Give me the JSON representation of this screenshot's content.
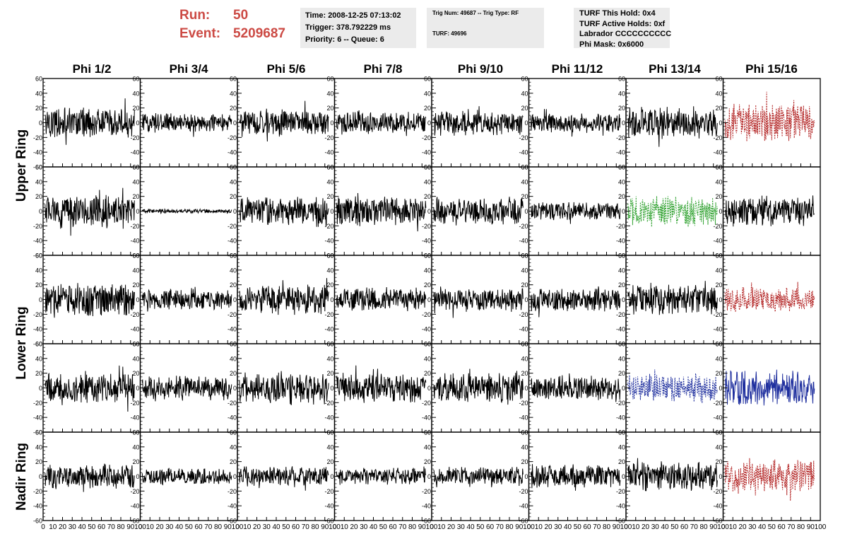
{
  "header": {
    "run_label": "Run:",
    "run_value": "50",
    "event_label": "Event:",
    "event_value": "5209687"
  },
  "info_time": {
    "time": "Time: 2008-12-25 07:13:02",
    "trigger": "Trigger: 378.792229 ms",
    "priority": "Priority: 6 -- Queue: 6"
  },
  "info_trig": {
    "trig": "Trig Num: 49687 -- Trig Type: RF",
    "turf": "TURF: 49696"
  },
  "info_turf": {
    "hold": "TURF This Hold: 0x4",
    "active": "TURF Active Holds: 0xf",
    "labrador": "Labrador CCCCCCCCCC",
    "phimask": "Phi Mask: 0x6000"
  },
  "columns": [
    "Phi 1/2",
    "Phi 3/4",
    "Phi 5/6",
    "Phi 7/8",
    "Phi 9/10",
    "Phi 11/12",
    "Phi 13/14",
    "Phi 15/16"
  ],
  "ring_labels": {
    "upper": "Upper Ring",
    "lower": "Lower Ring",
    "nadir": "Nadir Ring"
  },
  "colors": {
    "run": "#cc4a44",
    "normal": "#000000",
    "red": "#b22222",
    "green": "#2ca02c",
    "blue": "#1f2f9e"
  },
  "chart_data": {
    "type": "line",
    "description_grid": "5 rows x 8 columns of waveform traces",
    "x_range": [
      0,
      100
    ],
    "x_tick_labels": [
      "0",
      "10",
      "20",
      "30",
      "40",
      "50",
      "60",
      "70",
      "80",
      "90",
      "100"
    ],
    "ylim": [
      -60,
      60
    ],
    "y_tick_labels": [
      "60",
      "40",
      "20",
      "0",
      "-20",
      "-40",
      "-60"
    ],
    "rows": [
      {
        "traces": [
          {
            "color": "black",
            "style": "solid",
            "amplitude": 22
          },
          {
            "color": "black",
            "style": "solid",
            "amplitude": 14
          },
          {
            "color": "black",
            "style": "solid",
            "amplitude": 20
          },
          {
            "color": "black",
            "style": "solid",
            "amplitude": 17
          },
          {
            "color": "black",
            "style": "solid",
            "amplitude": 19
          },
          {
            "color": "black",
            "style": "solid",
            "amplitude": 14
          },
          {
            "color": "black",
            "style": "solid",
            "amplitude": 23
          },
          {
            "color": "red",
            "style": "dashed",
            "amplitude": 28
          }
        ]
      },
      {
        "traces": [
          {
            "color": "black",
            "style": "solid",
            "amplitude": 24
          },
          {
            "color": "black",
            "style": "solid",
            "amplitude": 3
          },
          {
            "color": "black",
            "style": "solid",
            "amplitude": 22
          },
          {
            "color": "black",
            "style": "solid",
            "amplitude": 22
          },
          {
            "color": "black",
            "style": "solid",
            "amplitude": 20
          },
          {
            "color": "black",
            "style": "solid",
            "amplitude": 14
          },
          {
            "color": "green",
            "style": "dashed",
            "amplitude": 22
          },
          {
            "color": "black",
            "style": "solid",
            "amplitude": 22
          }
        ]
      },
      {
        "traces": [
          {
            "color": "black",
            "style": "solid",
            "amplitude": 24
          },
          {
            "color": "black",
            "style": "solid",
            "amplitude": 15
          },
          {
            "color": "black",
            "style": "solid",
            "amplitude": 22
          },
          {
            "color": "black",
            "style": "solid",
            "amplitude": 17
          },
          {
            "color": "black",
            "style": "solid",
            "amplitude": 17
          },
          {
            "color": "black",
            "style": "solid",
            "amplitude": 17
          },
          {
            "color": "black",
            "style": "solid",
            "amplitude": 22
          },
          {
            "color": "red",
            "style": "dashed",
            "amplitude": 18
          }
        ]
      },
      {
        "traces": [
          {
            "color": "black",
            "style": "solid",
            "amplitude": 22
          },
          {
            "color": "black",
            "style": "solid",
            "amplitude": 18
          },
          {
            "color": "black",
            "style": "solid",
            "amplitude": 22
          },
          {
            "color": "black",
            "style": "solid",
            "amplitude": 22
          },
          {
            "color": "black",
            "style": "solid",
            "amplitude": 22
          },
          {
            "color": "black",
            "style": "solid",
            "amplitude": 18
          },
          {
            "color": "blue",
            "style": "dashed",
            "amplitude": 20
          },
          {
            "color": "blue",
            "style": "solid",
            "amplitude": 26
          }
        ]
      },
      {
        "traces": [
          {
            "color": "black",
            "style": "solid",
            "amplitude": 18
          },
          {
            "color": "black",
            "style": "solid",
            "amplitude": 12
          },
          {
            "color": "black",
            "style": "solid",
            "amplitude": 14
          },
          {
            "color": "black",
            "style": "solid",
            "amplitude": 12
          },
          {
            "color": "black",
            "style": "solid",
            "amplitude": 14
          },
          {
            "color": "black",
            "style": "solid",
            "amplitude": 18
          },
          {
            "color": "black",
            "style": "solid",
            "amplitude": 22
          },
          {
            "color": "red",
            "style": "dashed",
            "amplitude": 26
          }
        ]
      }
    ]
  }
}
